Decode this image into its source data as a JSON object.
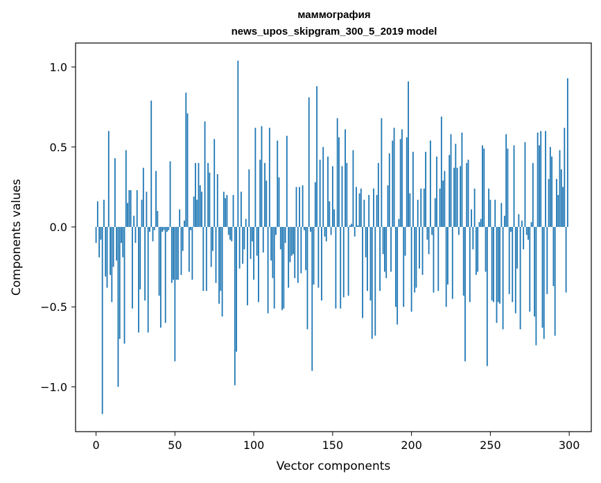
{
  "chart_data": {
    "type": "bar",
    "title_line1": "маммография",
    "title_line2": "news_upos_skipgram_300_5_2019 model",
    "xlabel": "Vector components",
    "ylabel": "Components values",
    "xlim": [
      -13,
      314
    ],
    "ylim": [
      -1.28,
      1.15
    ],
    "x_ticks": [
      0,
      50,
      100,
      150,
      200,
      250,
      300
    ],
    "x_tick_labels": [
      "0",
      "50",
      "100",
      "150",
      "200",
      "250",
      "300"
    ],
    "y_ticks": [
      -1.0,
      -0.5,
      0.0,
      0.5,
      1.0
    ],
    "y_tick_labels": [
      "−1.0",
      "−0.5",
      "0.0",
      "0.5",
      "1.0"
    ],
    "bar_color": "#1f77b4",
    "values": [
      -0.1,
      0.16,
      -0.19,
      -0.08,
      -1.17,
      0.17,
      -0.31,
      -0.38,
      0.6,
      -0.3,
      -0.47,
      -0.25,
      0.43,
      -0.21,
      -1.0,
      -0.7,
      -0.1,
      -0.19,
      -0.73,
      0.48,
      0.15,
      0.23,
      0.23,
      -0.51,
      0.07,
      -0.1,
      0.23,
      -0.66,
      -0.39,
      0.17,
      0.37,
      -0.46,
      0.22,
      -0.66,
      -0.03,
      0.79,
      -0.09,
      -0.02,
      0.35,
      0.1,
      -0.43,
      -0.63,
      -0.03,
      -0.02,
      -0.6,
      -0.03,
      -0.02,
      0.41,
      -0.35,
      -0.33,
      -0.84,
      -0.33,
      -0.33,
      0.11,
      -0.3,
      -0.15,
      0.04,
      0.84,
      0.71,
      -0.28,
      -0.02,
      -0.33,
      0.19,
      0.4,
      0.17,
      0.4,
      0.26,
      0.22,
      -0.4,
      0.66,
      -0.4,
      0.4,
      0.34,
      -0.25,
      -0.15,
      0.55,
      -0.35,
      0.33,
      -0.48,
      -0.4,
      -0.56,
      0.22,
      0.18,
      0.2,
      -0.05,
      -0.08,
      -0.09,
      0.2,
      -0.99,
      -0.78,
      1.04,
      -0.26,
      0.22,
      -0.23,
      -0.14,
      0.05,
      -0.49,
      0.36,
      -0.2,
      -0.09,
      -0.33,
      0.62,
      -0.18,
      -0.47,
      0.42,
      0.63,
      -0.16,
      0.4,
      0.29,
      -0.54,
      0.62,
      -0.21,
      -0.32,
      -0.51,
      -0.05,
      0.54,
      0.31,
      -0.14,
      -0.52,
      -0.51,
      -0.1,
      0.57,
      -0.38,
      -0.22,
      -0.18,
      -0.17,
      -0.32,
      0.25,
      -0.35,
      0.25,
      -0.29,
      0.26,
      -0.02,
      -0.27,
      -0.64,
      0.81,
      -0.03,
      -0.9,
      -0.36,
      0.28,
      0.88,
      -0.38,
      0.42,
      -0.46,
      0.5,
      -0.06,
      -0.09,
      0.44,
      0.16,
      -0.05,
      0.38,
      0.11,
      -0.51,
      0.68,
      0.56,
      -0.51,
      0.38,
      -0.44,
      0.61,
      0.4,
      -0.43,
      0.01,
      0.02,
      0.48,
      -0.06,
      0.25,
      0.01,
      0.21,
      0.24,
      -0.57,
      0.17,
      -0.19,
      -0.4,
      0.2,
      -0.46,
      -0.7,
      0.24,
      -0.68,
      0.2,
      0.4,
      -0.4,
      0.68,
      -0.17,
      -0.28,
      -0.32,
      0.26,
      0.46,
      -0.28,
      0.54,
      0.62,
      -0.5,
      -0.61,
      0.05,
      0.55,
      0.61,
      -0.5,
      -0.18,
      0.56,
      0.91,
      0.21,
      -0.53,
      0.47,
      -0.41,
      -0.38,
      0.17,
      -0.26,
      0.24,
      -0.3,
      0.24,
      0.47,
      -0.08,
      -0.17,
      0.54,
      -0.05,
      -0.41,
      0.18,
      0.44,
      -0.4,
      0.24,
      0.69,
      0.29,
      0.35,
      -0.5,
      -0.36,
      0.45,
      0.58,
      -0.45,
      0.37,
      0.52,
      0.37,
      -0.05,
      0.38,
      0.59,
      -0.43,
      -0.84,
      0.4,
      0.42,
      -0.47,
      0.11,
      -0.14,
      0.24,
      -0.3,
      -0.28,
      0.03,
      0.05,
      0.51,
      0.49,
      -0.28,
      -0.87,
      0.24,
      0.17,
      -0.46,
      -0.47,
      0.17,
      -0.6,
      -0.47,
      -0.48,
      0.15,
      -0.64,
      0.07,
      0.58,
      0.49,
      -0.42,
      -0.03,
      -0.47,
      0.51,
      -0.54,
      -0.26,
      0.08,
      -0.64,
      0.04,
      -0.14,
      0.53,
      -0.05,
      -0.08,
      -0.53,
      0.03,
      0.4,
      -0.56,
      -0.74,
      0.59,
      0.51,
      0.6,
      -0.63,
      -0.7,
      0.6,
      -0.42,
      0.3,
      0.5,
      0.44,
      -0.37,
      -0.68,
      0.3,
      0.2,
      0.48,
      0.36,
      0.25,
      0.62,
      -0.41,
      0.93
    ]
  }
}
